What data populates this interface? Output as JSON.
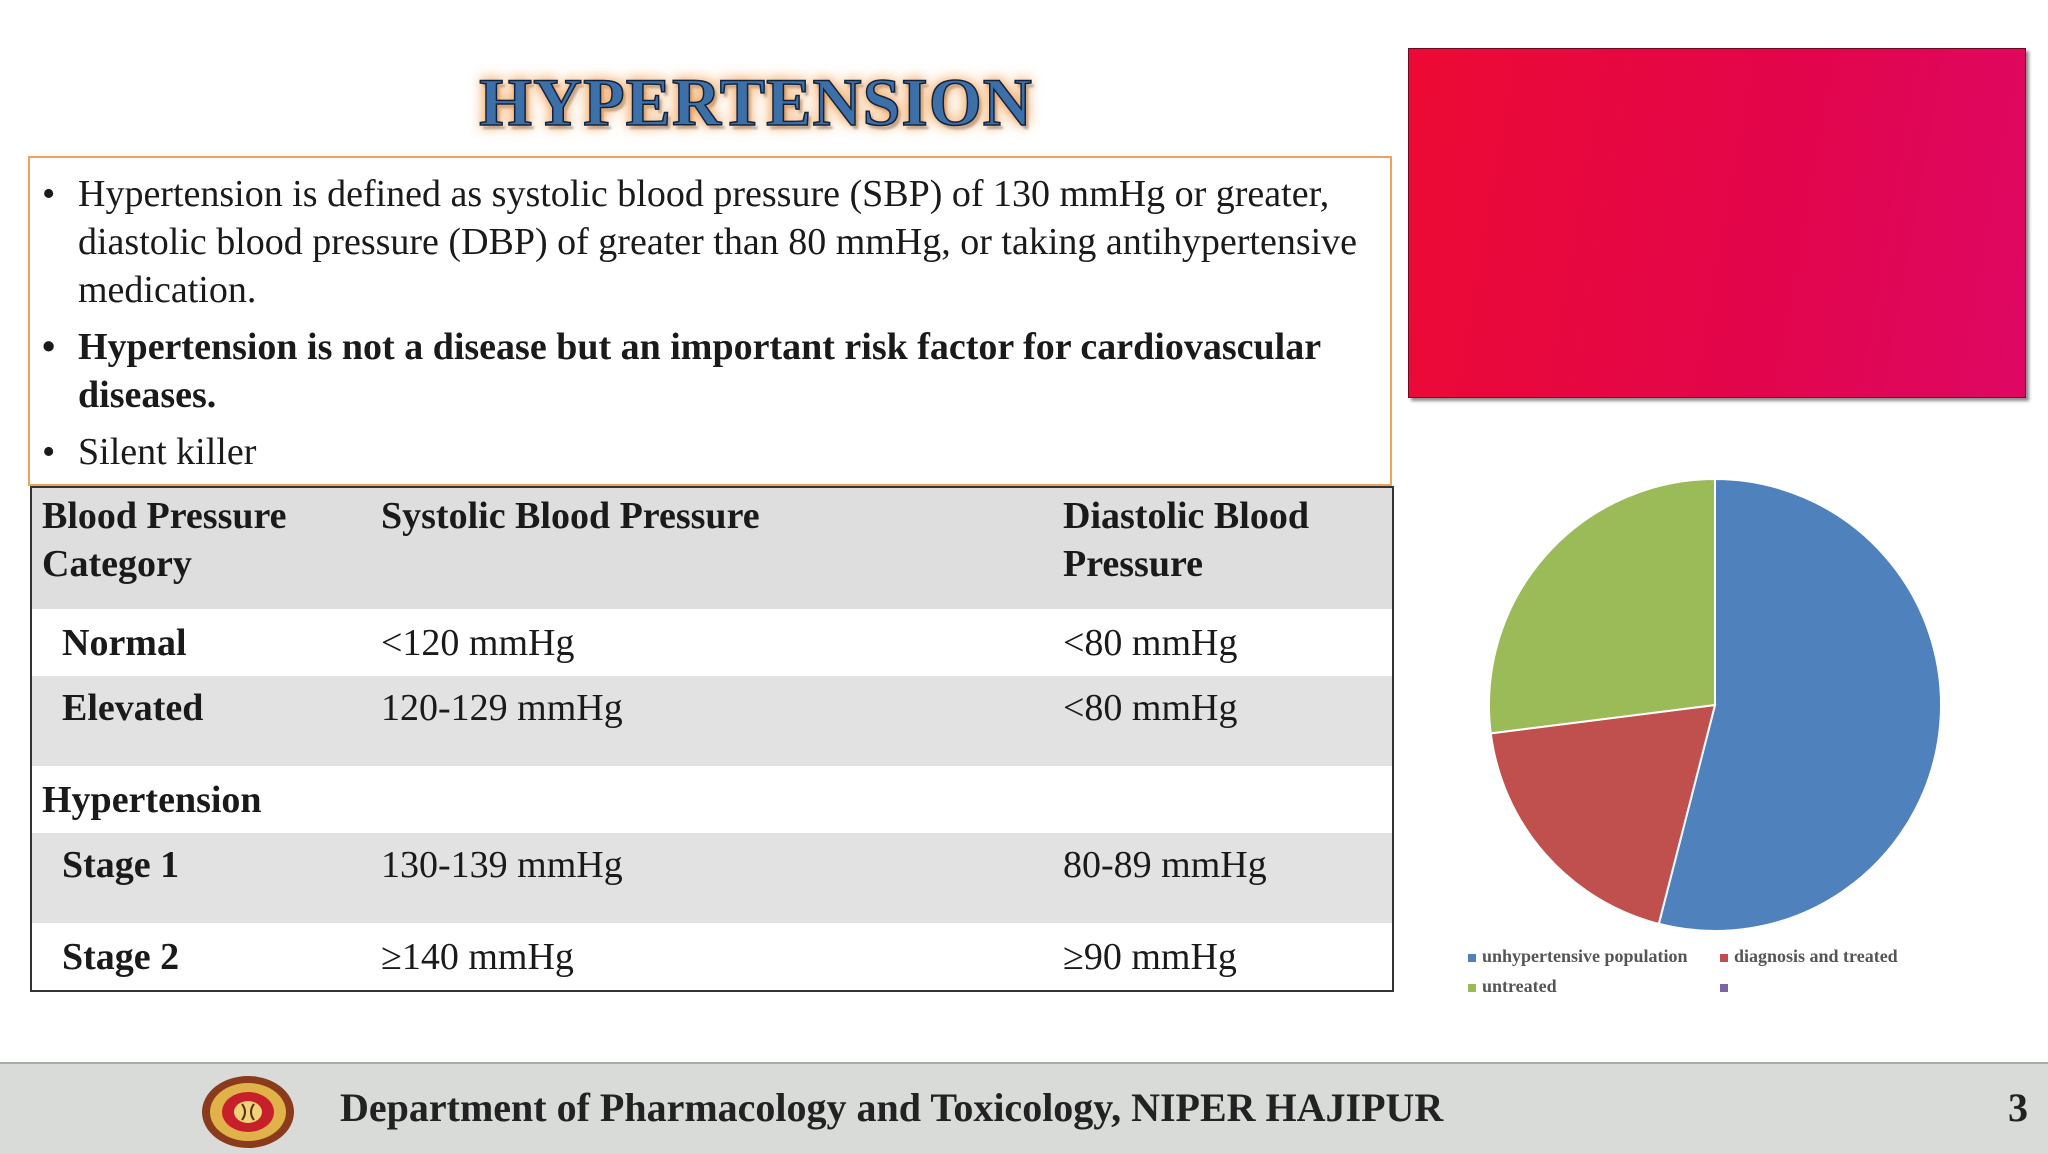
{
  "title": "HYPERTENSION",
  "bullets": [
    {
      "text": "Hypertension is defined as systolic blood pressure  (SBP) of 130 mmHg or greater, diastolic blood pressure (DBP) of greater than 80 mmHg, or taking antihypertensive medication.",
      "bold": false
    },
    {
      "text": "Hypertension is not a disease but an important risk factor for cardiovascular diseases.",
      "bold": true
    },
    {
      "text": "Silent killer",
      "bold": false
    }
  ],
  "bullet_glyph": "•",
  "table": {
    "headers": [
      "Blood Pressure Category",
      "Systolic Blood Pressure",
      "Diastolic Blood Pressure"
    ],
    "rows": [
      {
        "category": "Normal",
        "systolic": "<120 mmHg",
        "diastolic": "<80 mmHg"
      },
      {
        "category": "Elevated",
        "systolic": "120-129 mmHg",
        "diastolic": "<80 mmHg"
      },
      {
        "category": "Hypertension",
        "systolic": "",
        "diastolic": ""
      },
      {
        "category": "Stage 1",
        "systolic": "130-139 mmHg",
        "diastolic": "80-89 mmHg"
      },
      {
        "category": "Stage 2",
        "systolic": "≥140 mmHg",
        "diastolic": "≥90 mmHg"
      }
    ]
  },
  "red_box_color": "#e5063f",
  "chart_data": {
    "type": "pie",
    "series": [
      {
        "name": "unhypertensive population",
        "value": 54,
        "color": "#4f81bd"
      },
      {
        "name": "diagnosis and treated",
        "value": 19,
        "color": "#c0504d"
      },
      {
        "name": "untreated",
        "value": 27,
        "color": "#9bbb59"
      },
      {
        "name": "",
        "value": 0,
        "color": "#8064a2"
      }
    ],
    "legend_position": "bottom"
  },
  "footer": {
    "department": "Department of Pharmacology and Toxicology, NIPER HAJIPUR",
    "page_number": "3"
  }
}
